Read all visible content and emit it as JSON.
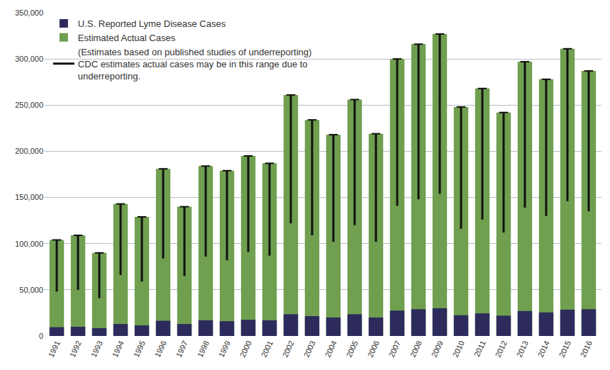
{
  "chart_data": {
    "type": "bar",
    "stacked": false,
    "grid": true,
    "legend": "top-left",
    "categories": [
      "1991",
      "1992",
      "1993",
      "1994",
      "1995",
      "1996",
      "1997",
      "1998",
      "1999",
      "2000",
      "2001",
      "2002",
      "2003",
      "2004",
      "2005",
      "2006",
      "2007",
      "2008",
      "2009",
      "2010",
      "2011",
      "2012",
      "2013",
      "2014",
      "2015",
      "2016"
    ],
    "series": [
      {
        "name": "U.S. Reported Lyme Disease Cases",
        "color": "#2c2b5c",
        "values": [
          9500,
          10000,
          8500,
          13000,
          11500,
          16500,
          13000,
          17000,
          16000,
          17500,
          17000,
          23500,
          21500,
          20000,
          23500,
          20000,
          27500,
          29000,
          30000,
          22500,
          24500,
          22000,
          27000,
          25500,
          28500,
          29000
        ]
      },
      {
        "name": "Estimated Actual Cases",
        "color": "#6f9f4f",
        "values": [
          104000,
          109000,
          90000,
          143000,
          129000,
          181000,
          140000,
          184000,
          179000,
          195000,
          187000,
          261000,
          234000,
          218000,
          256000,
          219000,
          300000,
          316000,
          327000,
          248000,
          268000,
          242000,
          297000,
          278000,
          311000,
          287000
        ]
      },
      {
        "name": "(Estimates based on published studies of underreporting) CDC estimates actual cases may be in this range due to underreporting.",
        "color": "#111111",
        "type": "range",
        "range_low": [
          48000,
          50000,
          41000,
          66000,
          59000,
          84000,
          65000,
          86000,
          82000,
          91000,
          87000,
          122000,
          109000,
          102000,
          120000,
          102000,
          141000,
          148000,
          154000,
          116000,
          126000,
          112000,
          139000,
          130000,
          146000,
          135000
        ],
        "range_high": [
          104000,
          109000,
          90000,
          143000,
          129000,
          181000,
          140000,
          184000,
          179000,
          195000,
          187000,
          261000,
          234000,
          218000,
          256000,
          219000,
          300000,
          316000,
          327000,
          248000,
          268000,
          242000,
          297000,
          278000,
          311000,
          287000
        ]
      }
    ],
    "ylim": [
      0,
      350000
    ],
    "yticks": [
      0,
      {
        "value": 50000,
        "label": "50,000"
      },
      {
        "value": 100000,
        "label": "100,000"
      },
      {
        "value": 150000,
        "label": "150,000"
      },
      {
        "value": 200000,
        "label": "200,000"
      },
      {
        "value": 250000,
        "label": "250,000"
      },
      {
        "value": 300000,
        "label": "300,000"
      },
      {
        "value": 350000,
        "label": "350,000"
      }
    ]
  }
}
